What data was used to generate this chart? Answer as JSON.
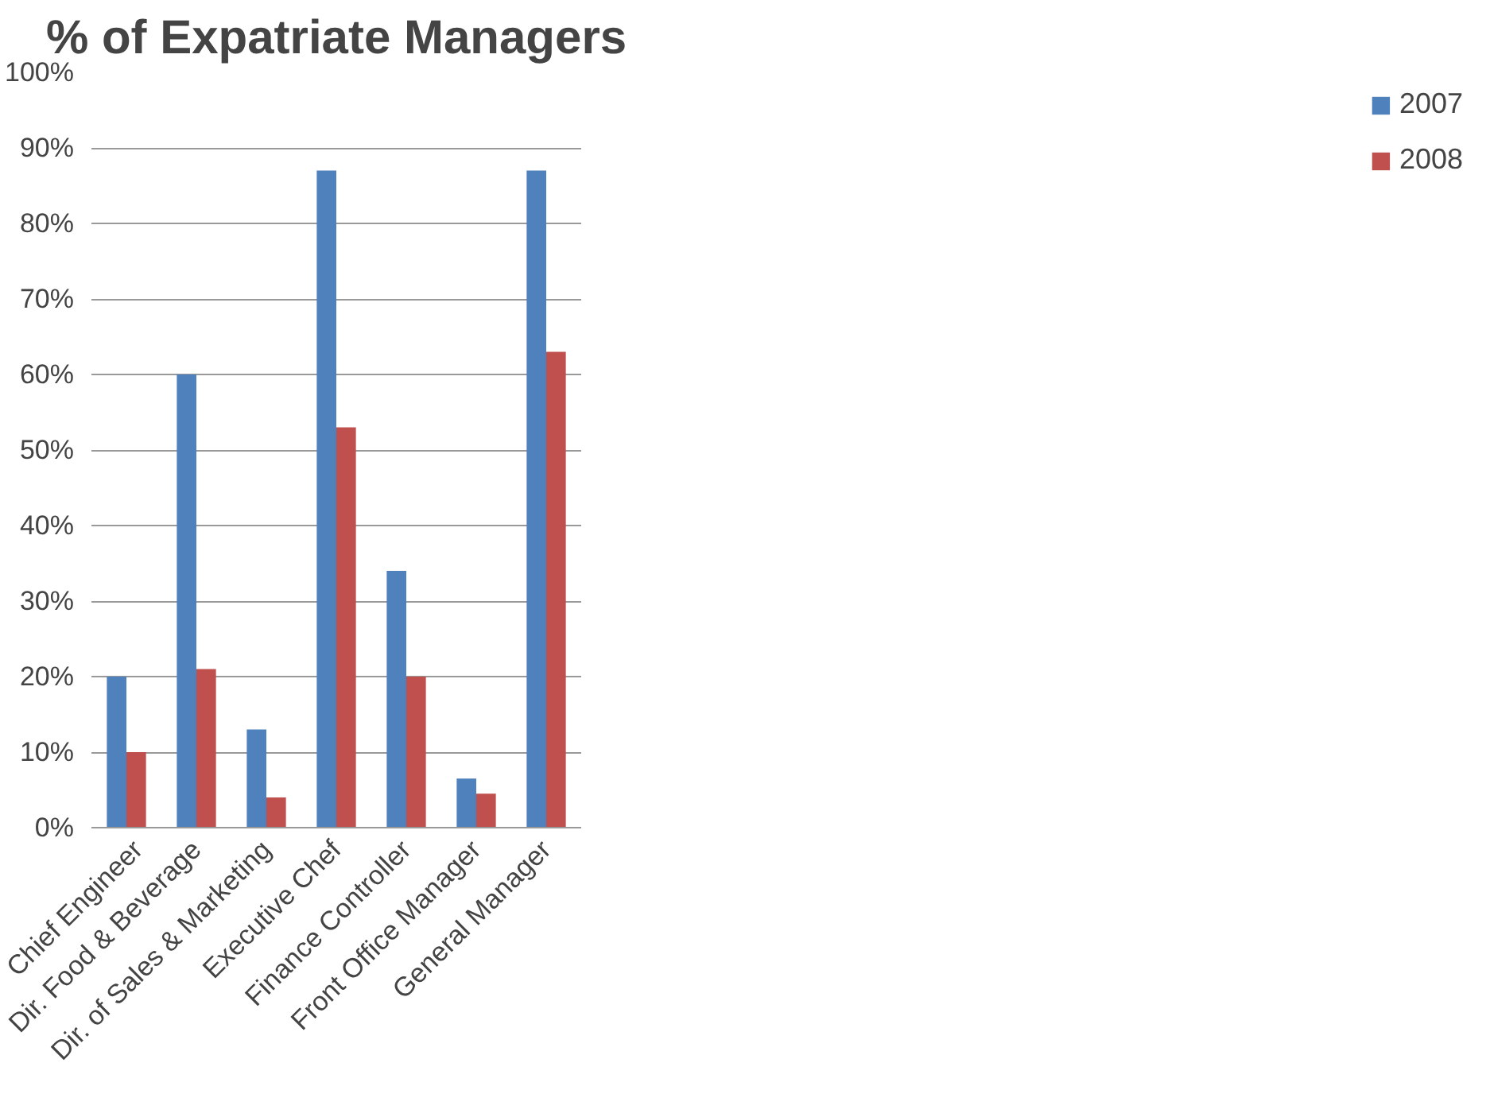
{
  "chart_data": {
    "type": "bar",
    "title": "% of Expatriate Managers",
    "categories": [
      "Chief Engineer",
      "Dir. Food & Beverage",
      "Dir. of Sales & Marketing",
      "Executive Chef",
      "Finance Controller",
      "Front Office Manager",
      "General Manager"
    ],
    "series": [
      {
        "name": "2007",
        "color": "#4f81bd",
        "values": [
          20,
          60,
          13,
          87,
          34,
          6.5,
          87
        ]
      },
      {
        "name": "2008",
        "color": "#c0504d",
        "values": [
          10,
          21,
          4,
          53,
          20,
          4.5,
          63
        ]
      }
    ],
    "ylim": [
      0,
      100
    ],
    "yticks": [
      {
        "value": 0,
        "label": "0%"
      },
      {
        "value": 10,
        "label": "10%"
      },
      {
        "value": 20,
        "label": "20%"
      },
      {
        "value": 30,
        "label": "30%"
      },
      {
        "value": 40,
        "label": "40%"
      },
      {
        "value": 50,
        "label": "50%"
      },
      {
        "value": 60,
        "label": "60%"
      },
      {
        "value": 70,
        "label": "70%"
      },
      {
        "value": 80,
        "label": "80%"
      },
      {
        "value": 90,
        "label": "90%"
      },
      {
        "value": 100,
        "label": "100%"
      }
    ],
    "grid": "y",
    "legend": "right"
  }
}
